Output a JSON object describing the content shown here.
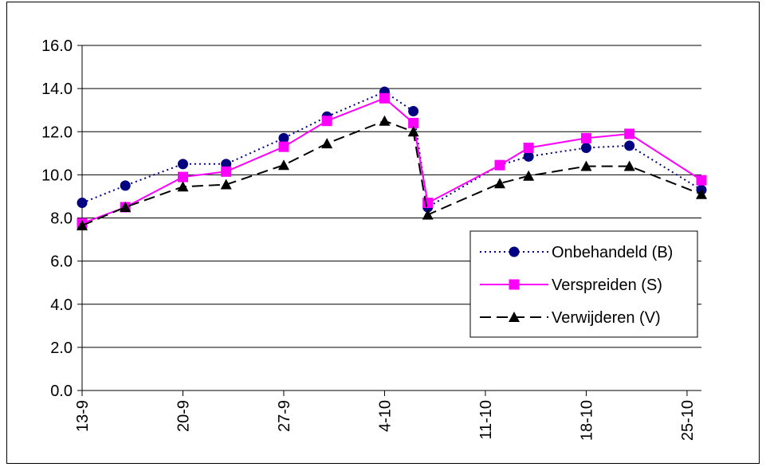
{
  "chart_data": {
    "type": "line",
    "title": "",
    "xlabel": "",
    "ylabel": "",
    "ylim": [
      0,
      16
    ],
    "yticks": [
      "0.0",
      "2.0",
      "4.0",
      "6.0",
      "8.0",
      "10.0",
      "12.0",
      "14.0",
      "16.0"
    ],
    "xlim": [
      "13-9",
      "26-10"
    ],
    "xticks": [
      "13-9",
      "20-9",
      "27-9",
      "4-10",
      "11-10",
      "18-10",
      "25-10"
    ],
    "grid": "horizontal",
    "legend_position": "right",
    "series": [
      {
        "name": "Onbehandeld (B)",
        "color": "#000080",
        "marker": "circle",
        "line_style": "dotted",
        "x": [
          "13-9",
          "16-9",
          "20-9",
          "23-9",
          "27-9",
          "30-9",
          "4-10",
          "6-10",
          "7-10",
          "12-10",
          "14-10",
          "18-10",
          "21-10",
          "26-10"
        ],
        "values": [
          8.7,
          9.5,
          10.5,
          10.5,
          11.7,
          12.7,
          13.85,
          12.95,
          8.5,
          10.45,
          10.85,
          11.25,
          11.35,
          9.3
        ]
      },
      {
        "name": "Verspreiden (S)",
        "color": "#ff00ff",
        "marker": "square",
        "line_style": "solid",
        "x": [
          "13-9",
          "16-9",
          "20-9",
          "23-9",
          "27-9",
          "30-9",
          "4-10",
          "6-10",
          "7-10",
          "12-10",
          "14-10",
          "18-10",
          "21-10",
          "26-10"
        ],
        "values": [
          7.75,
          8.5,
          9.9,
          10.15,
          11.3,
          12.5,
          13.55,
          12.4,
          8.7,
          10.45,
          11.25,
          11.7,
          11.9,
          9.75
        ]
      },
      {
        "name": "Verwijderen (V)",
        "color": "#000000",
        "marker": "triangle",
        "line_style": "dashed",
        "x": [
          "13-9",
          "16-9",
          "20-9",
          "23-9",
          "27-9",
          "30-9",
          "4-10",
          "6-10",
          "7-10",
          "12-10",
          "14-10",
          "18-10",
          "21-10",
          "26-10"
        ],
        "values": [
          7.65,
          8.5,
          9.45,
          9.55,
          10.45,
          11.45,
          12.5,
          12.0,
          8.15,
          9.6,
          9.95,
          10.4,
          10.4,
          9.1
        ]
      }
    ]
  }
}
